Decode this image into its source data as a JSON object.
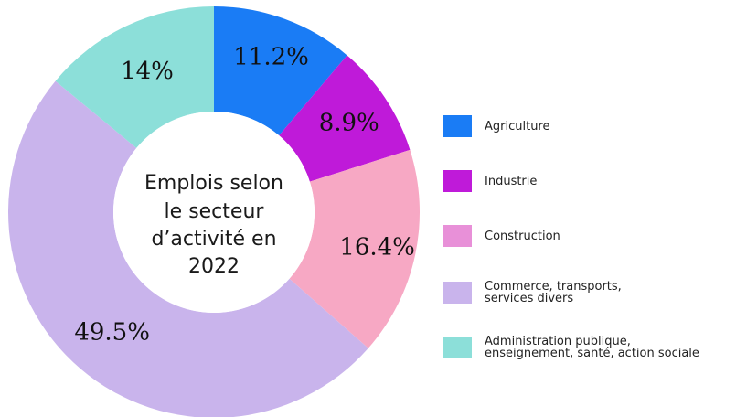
{
  "chart_data": {
    "type": "pie",
    "center_title_lines": [
      "Emplois selon",
      "le secteur",
      "d’activité en",
      "2022"
    ],
    "categories": [
      "Agriculture",
      "Industrie",
      "Construction",
      "Commerce, transports,\nservices divers",
      "Administration publique,\nenseignement, santé, action sociale"
    ],
    "values": [
      11.2,
      8.9,
      16.4,
      49.5,
      14
    ],
    "value_labels": [
      "11.2%",
      "8.9%",
      "16.4%",
      "49.5%",
      "14%"
    ],
    "slice_colors": [
      "#1a7cf5",
      "#bf1ad9",
      "#f7a8c4",
      "#c9b4ec",
      "#8cdfd9"
    ],
    "legend_colors": [
      "#1a7cf5",
      "#bf1ad9",
      "#e890d8",
      "#c9b4ec",
      "#8cdfd9"
    ],
    "legend_placement": "right"
  }
}
